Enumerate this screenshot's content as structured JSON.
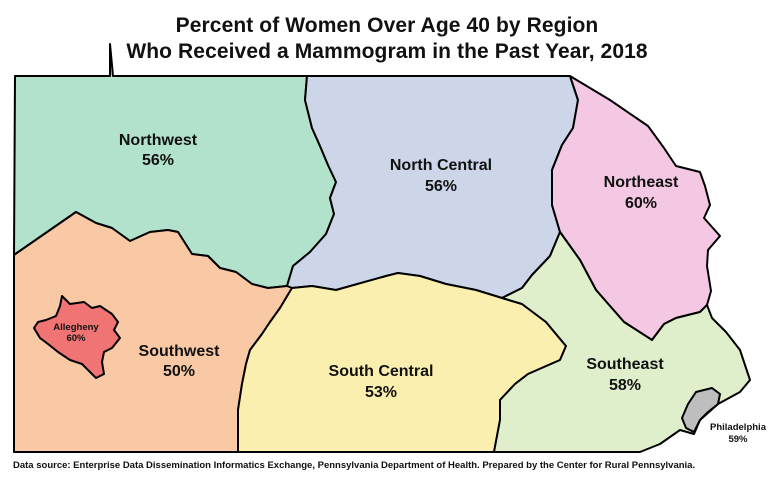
{
  "title": {
    "line1": "Percent of Women Over Age 40 by Region",
    "line2": "Who Received a Mammogram in the Past Year, 2018"
  },
  "regions": {
    "northwest": {
      "name": "Northwest",
      "value": "56%",
      "color": "#b2e2cc"
    },
    "north_central": {
      "name": "North Central",
      "value": "56%",
      "color": "#ccd6e8"
    },
    "northeast": {
      "name": "Northeast",
      "value": "60%",
      "color": "#f4c8e3"
    },
    "southwest": {
      "name": "Southwest",
      "value": "50%",
      "color": "#f9c9a5"
    },
    "allegheny": {
      "name": "Allegheny",
      "value": "60%",
      "color": "#f07474"
    },
    "south_central": {
      "name": "South Central",
      "value": "53%",
      "color": "#fbefb0"
    },
    "southeast": {
      "name": "Southeast",
      "value": "58%",
      "color": "#e0efcb"
    },
    "philadelphia": {
      "name": "Philadelphia",
      "value": "59%",
      "color": "#bebebe"
    }
  },
  "source": "Data source: Enterprise Data Dissemination Informatics Exchange, Pennsylvania Department of Health. Prepared by the Center for Rural Pennsylvania."
}
